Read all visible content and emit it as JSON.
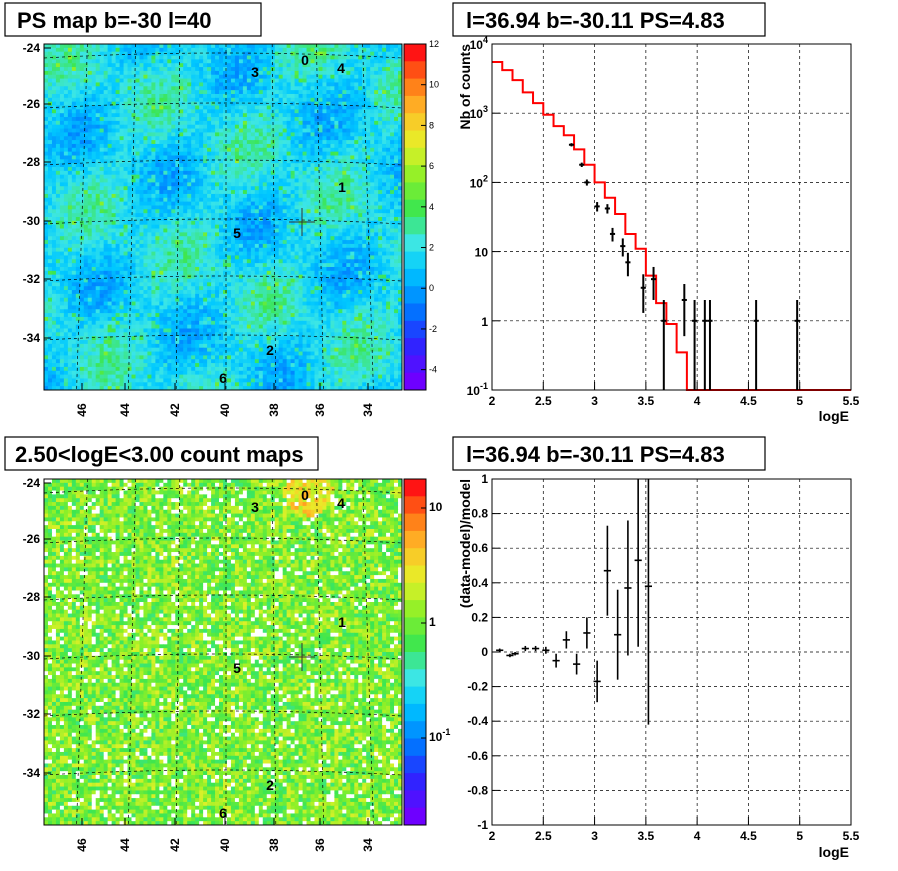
{
  "panels": {
    "ps_map": {
      "title": "PS map b=-30 l=40"
    },
    "spectrum": {
      "title": "l=36.94 b=-30.11 PS=4.83"
    },
    "count_map": {
      "title": "2.50<logE<3.00 count maps"
    },
    "residual": {
      "title": "l=36.94 b=-30.11 PS=4.83"
    }
  },
  "chart_data": [
    {
      "type": "heatmap",
      "name": "ps_map",
      "title": "PS map b=-30 l=40",
      "x_ticks": [
        "46",
        "44",
        "42",
        "40",
        "38",
        "36",
        "34"
      ],
      "y_ticks": [
        "-24",
        "-26",
        "-28",
        "-30",
        "-32",
        "-34"
      ],
      "colorbar_ticks": [
        "12",
        "10",
        "8",
        "6",
        "4",
        "2",
        "0",
        "-2",
        "-4"
      ],
      "zlim": [
        -5,
        12
      ],
      "sources": [
        {
          "label": "0"
        },
        {
          "label": "4"
        },
        {
          "label": "3"
        },
        {
          "label": "1"
        },
        {
          "label": "5"
        },
        {
          "label": "2"
        },
        {
          "label": "6"
        }
      ],
      "marker": {
        "l": 36.94,
        "b": -30.11
      }
    },
    {
      "type": "line",
      "name": "spectrum",
      "title": "l=36.94 b=-30.11 PS=4.83",
      "xlabel": "logE",
      "ylabel": "Nb of counts",
      "xlim": [
        2,
        5.5
      ],
      "ylim": [
        0.1,
        10000
      ],
      "yscale": "log",
      "x_ticks": [
        "2",
        "2.5",
        "3",
        "3.5",
        "4",
        "4.5",
        "5",
        "5.5"
      ],
      "y_ticks": [
        {
          "base": "10",
          "exp": "-1"
        },
        {
          "base": "1",
          "exp": ""
        },
        {
          "base": "10",
          "exp": ""
        },
        {
          "base": "10",
          "exp": "2"
        },
        {
          "base": "10",
          "exp": "3"
        },
        {
          "base": "10",
          "exp": "4"
        }
      ],
      "data_points": {
        "x": [
          2.775,
          2.875,
          2.925,
          3.025,
          3.125,
          3.175,
          3.275,
          3.325,
          3.475,
          3.575,
          3.675,
          3.875,
          3.975,
          4.075,
          4.125,
          4.575,
          4.975
        ],
        "y": [
          350,
          180,
          100,
          45,
          42,
          18,
          12,
          7,
          3,
          4,
          1,
          2,
          1,
          1,
          1,
          1,
          1
        ],
        "xerr": 0.025,
        "yerr_low": [
          19,
          13,
          10,
          7,
          6.5,
          4,
          3.5,
          2.6,
          1.7,
          2,
          1,
          1.4,
          1,
          1,
          1,
          1,
          1
        ],
        "yerr_high": [
          19,
          13,
          10,
          7,
          6.5,
          4,
          3.5,
          2.6,
          1.7,
          2,
          1,
          1.4,
          1,
          1,
          1,
          1,
          1
        ]
      },
      "model_step": {
        "edges": [
          2.0,
          2.1,
          2.2,
          2.3,
          2.4,
          2.5,
          2.6,
          2.7,
          2.8,
          2.9,
          3.0,
          3.1,
          3.2,
          3.3,
          3.4,
          3.5,
          3.6,
          3.7,
          3.8,
          3.9,
          4.0,
          5.5
        ],
        "values": [
          5500,
          4200,
          3000,
          2000,
          1400,
          950,
          650,
          480,
          300,
          180,
          100,
          60,
          35,
          18,
          11,
          4.5,
          1.8,
          0.9,
          0.35,
          0.1,
          0.1
        ]
      },
      "colors": {
        "data": "#000000",
        "model": "#ff0000"
      }
    },
    {
      "type": "heatmap",
      "name": "count_map",
      "title": "2.50<logE<3.00 count maps",
      "x_ticks": [
        "46",
        "44",
        "42",
        "40",
        "38",
        "36",
        "34"
      ],
      "y_ticks": [
        "-24",
        "-26",
        "-28",
        "-30",
        "-32",
        "-34"
      ],
      "colorbar_ticks": [
        {
          "base": "10",
          "exp": ""
        },
        {
          "base": "1",
          "exp": ""
        },
        {
          "base": "10",
          "exp": "-1"
        }
      ],
      "zscale": "log",
      "sources": [
        {
          "label": "0"
        },
        {
          "label": "4"
        },
        {
          "label": "3"
        },
        {
          "label": "1"
        },
        {
          "label": "5"
        },
        {
          "label": "2"
        },
        {
          "label": "6"
        }
      ]
    },
    {
      "type": "scatter",
      "name": "residual",
      "title": "l=36.94 b=-30.11 PS=4.83",
      "xlabel": "logE",
      "ylabel": "(data-model)/model",
      "xlim": [
        2,
        5.5
      ],
      "ylim": [
        -1,
        1
      ],
      "x_ticks": [
        "2",
        "2.5",
        "3",
        "3.5",
        "4",
        "4.5",
        "5",
        "5.5"
      ],
      "y_ticks": [
        "-1",
        "-0.8",
        "-0.6",
        "-0.4",
        "-0.2",
        "0",
        "0.2",
        "0.4",
        "0.6",
        "0.8",
        "1"
      ],
      "x": [
        2.075,
        2.175,
        2.225,
        2.325,
        2.425,
        2.525,
        2.625,
        2.725,
        2.825,
        2.925,
        3.025,
        3.125,
        3.225,
        3.325,
        3.425,
        3.525
      ],
      "y": [
        0.01,
        -0.02,
        -0.01,
        0.02,
        0.02,
        0.01,
        -0.05,
        0.07,
        -0.07,
        0.11,
        -0.17,
        0.47,
        0.1,
        0.37,
        0.53,
        0.38
      ],
      "yerr": [
        0.01,
        0.01,
        0.01,
        0.015,
        0.015,
        0.02,
        0.04,
        0.05,
        0.06,
        0.09,
        0.12,
        0.26,
        0.26,
        0.39,
        0.5,
        0.8
      ]
    }
  ]
}
